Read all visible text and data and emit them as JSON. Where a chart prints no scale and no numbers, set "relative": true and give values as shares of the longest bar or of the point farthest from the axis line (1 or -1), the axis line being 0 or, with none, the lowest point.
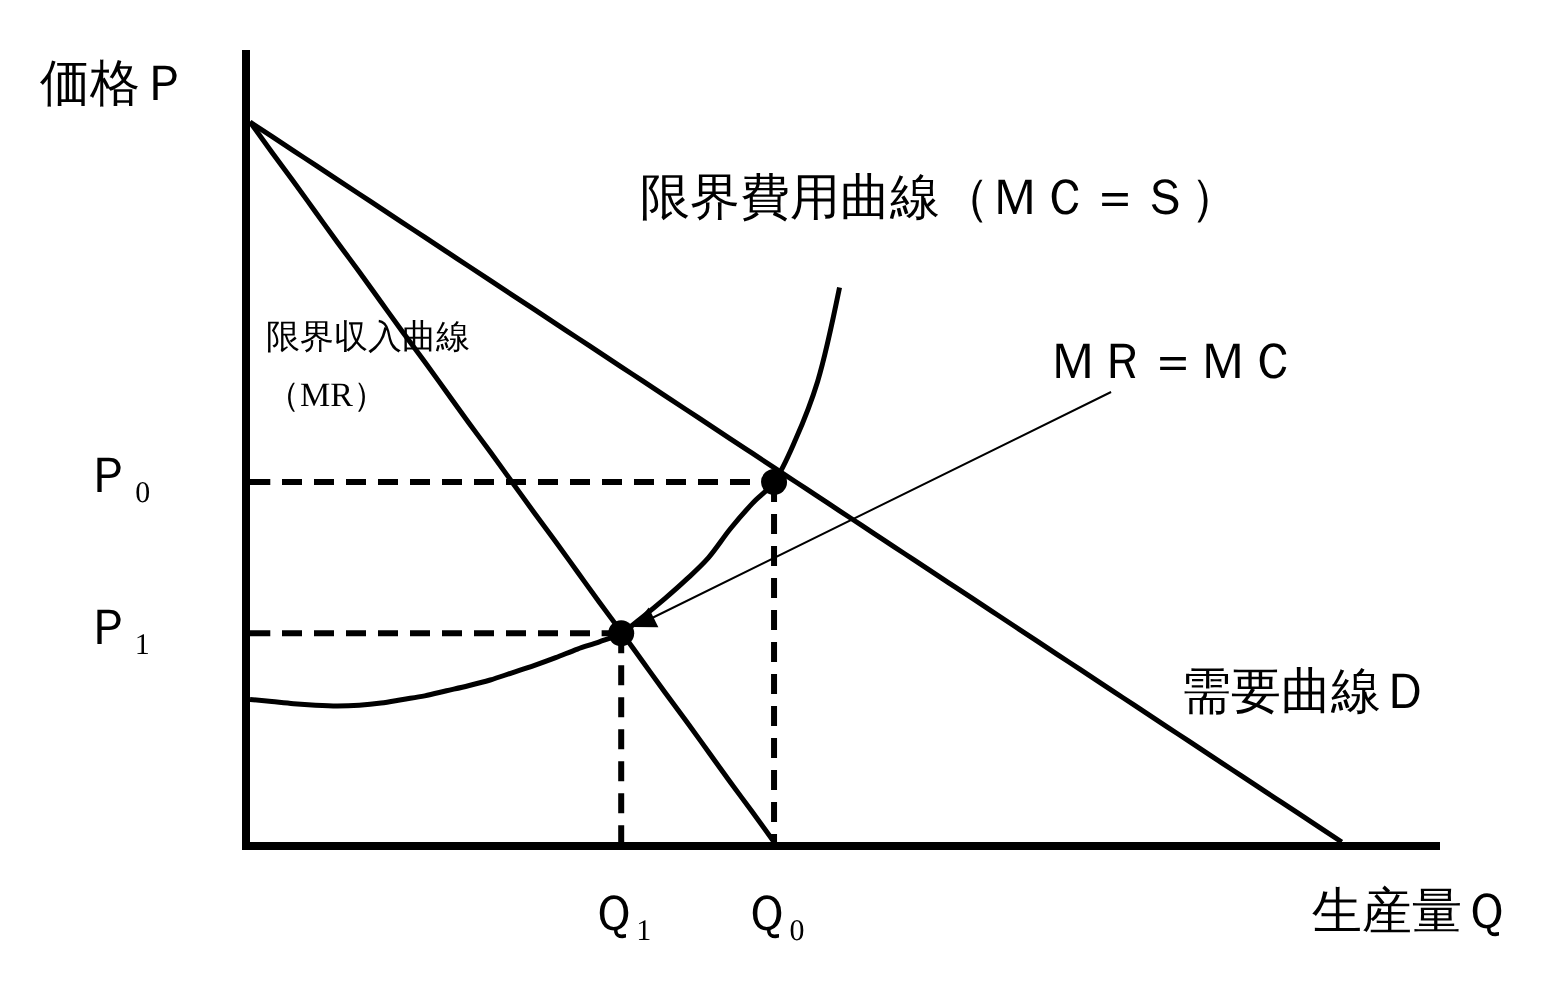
{
  "chart_data": {
    "type": "line",
    "relative": true,
    "xlabel": "生産量Ｑ",
    "ylabel": "価格Ｐ",
    "categories": [
      null,
      null,
      null,
      null,
      null,
      null,
      null,
      null,
      null,
      null,
      null,
      null,
      null,
      null,
      null,
      null,
      null,
      "Ｑ₁",
      null,
      null,
      null,
      null,
      null,
      null,
      "Ｑ₀",
      null,
      null,
      null,
      null,
      null,
      null,
      null,
      null,
      null,
      null,
      null,
      null,
      null,
      null,
      null,
      null,
      null,
      null,
      null,
      null,
      null,
      null,
      null,
      null,
      null,
      null,
      null,
      null,
      null,
      null
    ],
    "series": [
      {
        "name": "需要曲線Ｄ",
        "color": "#000000",
        "values": [
          1,
          0.98,
          0.96,
          0.94,
          0.92,
          0.9,
          0.88,
          0.86,
          0.84,
          0.82,
          0.8,
          0.78,
          0.76,
          0.74,
          0.72,
          0.7,
          0.68,
          0.66,
          0.64,
          0.62,
          0.6,
          0.58,
          0.56,
          0.54,
          0.52,
          0.5,
          0.48,
          0.46,
          0.44,
          0.42,
          0.4,
          0.38,
          0.36,
          0.34,
          0.32,
          0.3,
          0.28,
          0.26,
          0.24,
          0.22,
          0.2,
          0.18,
          0.16,
          0.14,
          0.12,
          0.1,
          0.08,
          0.06,
          0.04,
          0.02,
          0,
          null,
          null,
          null,
          null
        ]
      },
      {
        "name": "限界収入曲線（MR）",
        "color": "#000000",
        "values": [
          1,
          0.958,
          0.917,
          0.875,
          0.833,
          0.792,
          0.75,
          0.708,
          0.667,
          0.625,
          0.583,
          0.542,
          0.5,
          0.458,
          0.417,
          0.375,
          0.333,
          0.292,
          0.25,
          0.208,
          0.167,
          0.125,
          0.083,
          0.042,
          0,
          null,
          null,
          null,
          null,
          null,
          null,
          null,
          null,
          null,
          null,
          null,
          null,
          null,
          null,
          null,
          null,
          null,
          null,
          null,
          null,
          null,
          null,
          null,
          null,
          null,
          null,
          null,
          null,
          null,
          null
        ]
      },
      {
        "name": "限界費用曲線（ＭＣ＝Ｓ）",
        "color": "#000000",
        "values": [
          0.198,
          0.195,
          0.192,
          0.19,
          0.189,
          0.19,
          0.193,
          0.198,
          0.203,
          0.21,
          0.217,
          0.225,
          0.235,
          0.245,
          0.256,
          0.268,
          0.278,
          0.29,
          0.313,
          0.338,
          0.365,
          0.395,
          0.435,
          0.47,
          0.5,
          0.56,
          0.64,
          0.77,
          null,
          null,
          null,
          null,
          null,
          null,
          null,
          null,
          null,
          null,
          null,
          null,
          null,
          null,
          null,
          null,
          null,
          null,
          null,
          null,
          null,
          null,
          null,
          null,
          null,
          null,
          null
        ]
      },
      {
        "color": "#000000",
        "line_style": "dashed",
        "values": [
          0.5,
          0.5,
          0.5,
          0.5,
          0.5,
          0.5,
          0.5,
          0.5,
          0.5,
          0.5,
          0.5,
          0.5,
          0.5,
          0.5,
          0.5,
          0.5,
          0.5,
          0.5,
          0.5,
          0.5,
          0.5,
          0.5,
          0.5,
          0.5,
          0.5,
          null,
          null,
          null,
          null,
          null,
          null,
          null,
          null,
          null,
          null,
          null,
          null,
          null,
          null,
          null,
          null,
          null,
          null,
          null,
          null,
          null,
          null,
          null,
          null,
          null,
          null,
          null,
          null,
          null,
          null
        ]
      },
      {
        "color": "#000000",
        "line_style": "dashed",
        "values": [
          0.29,
          0.29,
          0.29,
          0.29,
          0.29,
          0.29,
          0.29,
          0.29,
          0.29,
          0.29,
          0.29,
          0.29,
          0.29,
          0.29,
          0.29,
          0.29,
          0.29,
          0.29,
          null,
          null,
          null,
          null,
          null,
          null,
          null,
          null,
          null,
          null,
          null,
          null,
          null,
          null,
          null,
          null,
          null,
          null,
          null,
          null,
          null,
          null,
          null,
          null,
          null,
          null,
          null,
          null,
          null,
          null,
          null,
          null,
          null,
          null,
          null,
          null,
          null
        ]
      },
      {
        "color": "#000000",
        "line_style": "dashed",
        "x": [
          "Ｑ₀",
          "Ｑ₀"
        ],
        "values": [
          0.5,
          0
        ]
      },
      {
        "color": "#000000",
        "line_style": "dashed",
        "x": [
          "Ｑ₁",
          "Ｑ₁"
        ],
        "values": [
          0.29,
          0
        ]
      },
      {
        "type": "scatter",
        "color": "#000000",
        "marker": "circle",
        "x": [
          "Ｑ₁",
          "Ｑ₀"
        ],
        "values": [
          0.29,
          0.5
        ]
      }
    ],
    "annotations": [
      "Ｐ₀",
      "Ｐ₁",
      {
        "text": "ＭＲ＝ＭＣ",
        "x": "Ｑ₁",
        "y": 0.29
      }
    ]
  }
}
